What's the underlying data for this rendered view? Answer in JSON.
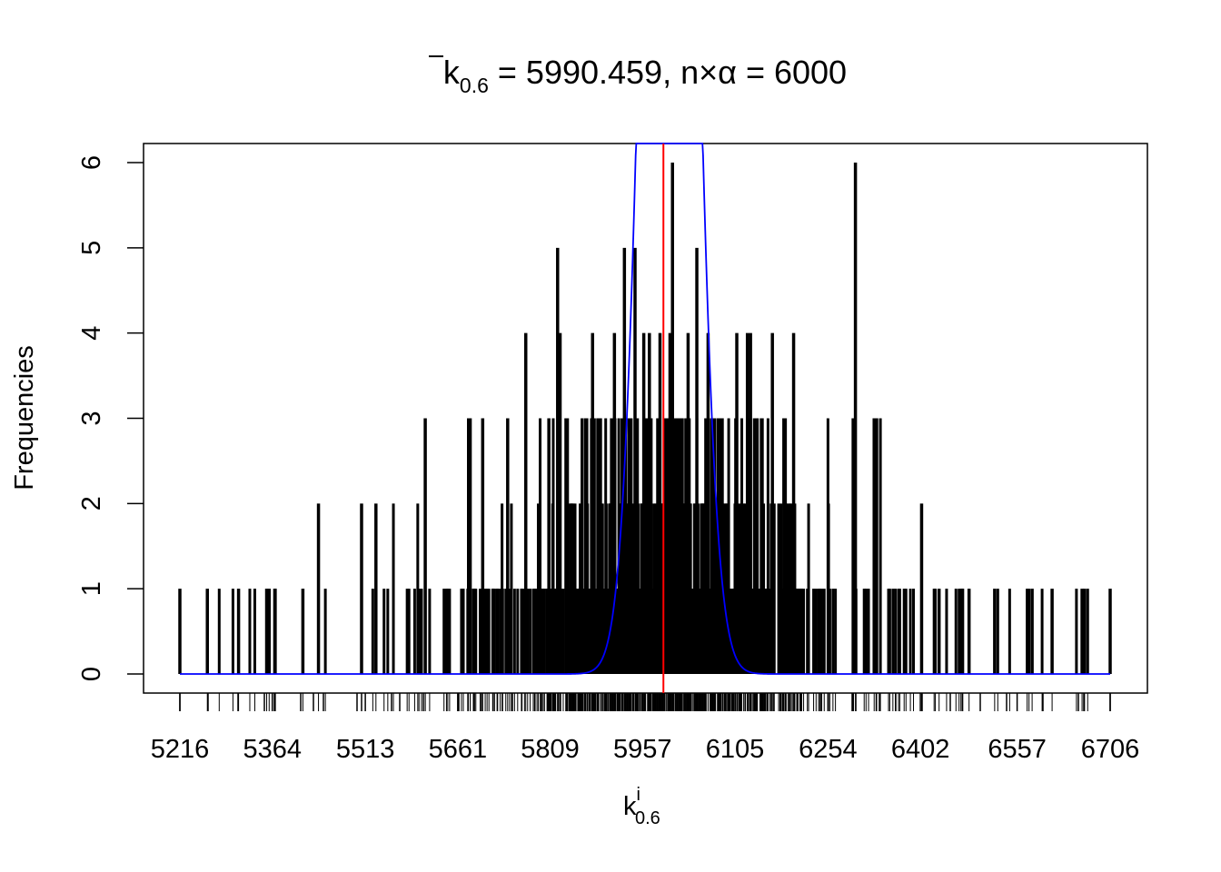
{
  "chart_data": {
    "type": "bar",
    "title": {
      "k": "k",
      "sub": "0.6",
      "eq1": " = 5990.459, n",
      "times": "×",
      "alpha": "α",
      "eq2": " = 6000"
    },
    "xlabel": {
      "main": "k",
      "sup": "i",
      "sub": "0.6"
    },
    "ylabel": "Frequencies",
    "x_ticks": [
      5216,
      5364,
      5513,
      5661,
      5809,
      5957,
      6105,
      6254,
      6402,
      6557,
      6706
    ],
    "y_ticks": [
      0,
      1,
      2,
      3,
      4,
      5,
      6
    ],
    "xlim": [
      5216,
      6706
    ],
    "ylim": [
      0,
      6
    ],
    "mean_line": 5990.459,
    "expected": 6000,
    "density": {
      "mean": 6000,
      "sd": 35,
      "peak": 20
    },
    "colors": {
      "bars": "#000000",
      "mean_line": "#ff0000",
      "density": "#0000ff"
    },
    "highlighted_values": [
      {
        "x": 5216,
        "y": 1
      },
      {
        "x": 5260,
        "y": 1
      },
      {
        "x": 5310,
        "y": 1
      },
      {
        "x": 5355,
        "y": 1
      },
      {
        "x": 5359,
        "y": 1
      },
      {
        "x": 5368,
        "y": 1
      },
      {
        "x": 5413,
        "y": 1
      },
      {
        "x": 5438,
        "y": 2
      },
      {
        "x": 5507,
        "y": 2
      },
      {
        "x": 5530,
        "y": 2
      },
      {
        "x": 5609,
        "y": 3
      },
      {
        "x": 5681,
        "y": 3
      },
      {
        "x": 5701,
        "y": 3
      },
      {
        "x": 5741,
        "y": 3
      },
      {
        "x": 5770,
        "y": 4
      },
      {
        "x": 5807,
        "y": 3
      },
      {
        "x": 5821,
        "y": 5
      },
      {
        "x": 5825,
        "y": 4
      },
      {
        "x": 5877,
        "y": 4
      },
      {
        "x": 5912,
        "y": 4
      },
      {
        "x": 5928,
        "y": 5
      },
      {
        "x": 5945,
        "y": 5
      },
      {
        "x": 5959,
        "y": 4
      },
      {
        "x": 5968,
        "y": 4
      },
      {
        "x": 5985,
        "y": 4
      },
      {
        "x": 6001,
        "y": 4
      },
      {
        "x": 6005,
        "y": 6
      },
      {
        "x": 6030,
        "y": 4
      },
      {
        "x": 6044,
        "y": 5
      },
      {
        "x": 6062,
        "y": 4
      },
      {
        "x": 6108,
        "y": 4
      },
      {
        "x": 6125,
        "y": 4
      },
      {
        "x": 6130,
        "y": 4
      },
      {
        "x": 6165,
        "y": 4
      },
      {
        "x": 6199,
        "y": 4
      },
      {
        "x": 6298,
        "y": 6
      },
      {
        "x": 6328,
        "y": 3
      },
      {
        "x": 6332,
        "y": 3
      },
      {
        "x": 6404,
        "y": 2
      },
      {
        "x": 6432,
        "y": 1
      },
      {
        "x": 6480,
        "y": 1
      },
      {
        "x": 6521,
        "y": 1
      },
      {
        "x": 6581,
        "y": 1
      },
      {
        "x": 6613,
        "y": 1
      },
      {
        "x": 6661,
        "y": 1
      },
      {
        "x": 6665,
        "y": 1
      },
      {
        "x": 6706,
        "y": 1
      }
    ]
  }
}
